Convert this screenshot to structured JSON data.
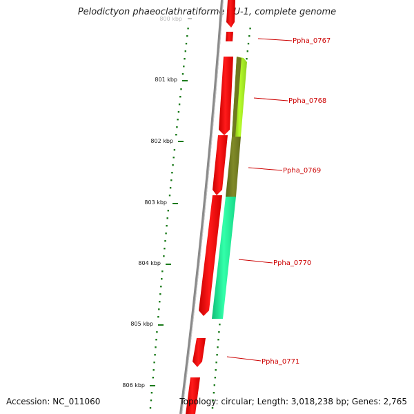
{
  "title": "Pelodictyon phaeoclathratiforme BU-1, complete genome",
  "footer": {
    "accession": "Accession: NC_011060",
    "summary": "Topology: circular; Length: 3,018,238 bp; Genes: 2,765"
  },
  "ruler": {
    "unit": "kbp",
    "ticks": [
      {
        "label": "800 kbp"
      },
      {
        "label": "801 kbp"
      },
      {
        "label": "802 kbp"
      },
      {
        "label": "803 kbp"
      },
      {
        "label": "804 kbp"
      },
      {
        "label": "805 kbp"
      },
      {
        "label": "806 kbp"
      }
    ]
  },
  "genes": [
    {
      "label": "Ppha_0767"
    },
    {
      "label": "Ppha_0768"
    },
    {
      "label": "Ppha_0769"
    },
    {
      "label": "Ppha_0770"
    },
    {
      "label": "Ppha_0771"
    }
  ],
  "colors": {
    "forward_strand": "#ff0000",
    "backbone": "#808080",
    "ruler_ticks": "#1a7a1a",
    "label_text": "#cc0000",
    "gene_0768": "#aaff22",
    "gene_0769": "#707a20",
    "gene_0770": "#22ee99"
  }
}
